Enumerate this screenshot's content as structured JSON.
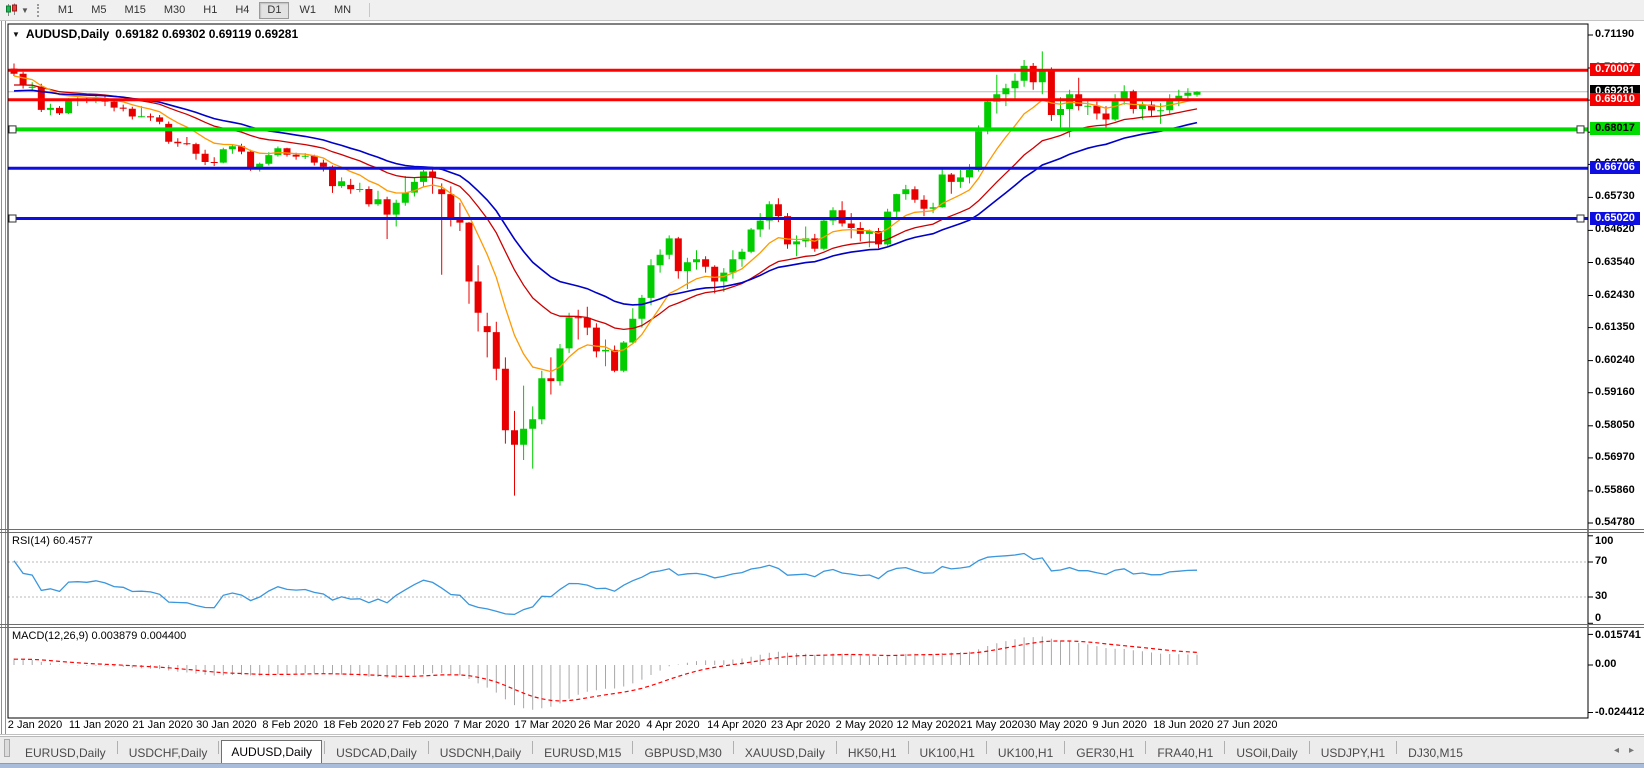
{
  "toolbar": {
    "timeframes": [
      "M1",
      "M5",
      "M15",
      "M30",
      "H1",
      "H4",
      "D1",
      "W1",
      "MN"
    ],
    "active_timeframe": "D1"
  },
  "tabs": {
    "items": [
      {
        "label": "EURUSD,Daily",
        "active": false
      },
      {
        "label": "USDCHF,Daily",
        "active": false
      },
      {
        "label": "AUDUSD,Daily",
        "active": true
      },
      {
        "label": "USDCAD,Daily",
        "active": false
      },
      {
        "label": "USDCNH,Daily",
        "active": false
      },
      {
        "label": "EURUSD,M15",
        "active": false
      },
      {
        "label": "GBPUSD,M30",
        "active": false
      },
      {
        "label": "XAUUSD,Daily",
        "active": false
      },
      {
        "label": "HK50,H1",
        "active": false
      },
      {
        "label": "UK100,H1",
        "active": false
      },
      {
        "label": "UK100,H1",
        "active": false
      },
      {
        "label": "GER30,H1",
        "active": false
      },
      {
        "label": "FRA40,H1",
        "active": false
      },
      {
        "label": "USOil,Daily",
        "active": false
      },
      {
        "label": "USDJPY,H1",
        "active": false
      },
      {
        "label": "DJ30,M15",
        "active": false
      }
    ],
    "scroll_left": "◂",
    "scroll_right": "▸"
  },
  "chart_data": {
    "type": "candlestick",
    "symbol": "AUDUSD",
    "timeframe": "Daily",
    "title": "AUDUSD,Daily",
    "ohlc_text": "0.69182 0.69302 0.69119 0.69281",
    "current": {
      "open": 0.69182,
      "high": 0.69302,
      "low": 0.69119,
      "close": 0.69281
    },
    "title_dropdown_icon": "▼",
    "colors": {
      "bull": "#00CC00",
      "bear": "#E80000",
      "ma_fast": "#FF9900",
      "ma_mid": "#CC0000",
      "ma_slow": "#0000C8",
      "rsi_line": "#3A96DD",
      "rsi_grid": "#B8B8B8",
      "macd_hist": "#A8A8A8",
      "macd_signal": "#FF0000",
      "current_price_line": "#BBBBBB",
      "frame": "#000000",
      "splitter": "#6E6E6E",
      "window_border": "#909090"
    },
    "price_axis": {
      "ticks": [
        "0.71190",
        "0.70080",
        "0.69000",
        "0.67920",
        "0.66840",
        "0.65730",
        "0.64620",
        "0.63540",
        "0.62430",
        "0.61350",
        "0.60240",
        "0.59160",
        "0.58050",
        "0.56970",
        "0.55860",
        "0.54780"
      ]
    },
    "current_price": {
      "label": "0.69281",
      "price": 0.69281,
      "badge_bg": "#000000",
      "badge_fg": "#FFFFFF",
      "line_color": "#BBBBBB"
    },
    "levels": [
      {
        "label": "0.70007",
        "price": 0.70007,
        "line_color": "#FF0000",
        "badge_bg": "#F40000",
        "badge_fg": "#FFFFFF",
        "width": 3,
        "handles": false
      },
      {
        "label": "0.69010",
        "price": 0.6901,
        "line_color": "#FF0000",
        "badge_bg": "#F40000",
        "badge_fg": "#FFFFFF",
        "width": 3,
        "handles": false
      },
      {
        "label": "0.68017",
        "price": 0.68017,
        "line_color": "#00DC00",
        "badge_bg": "#00DC00",
        "badge_fg": "#000000",
        "width": 4,
        "handles": true
      },
      {
        "label": "0.66706",
        "price": 0.66706,
        "line_color": "#0E0EE0",
        "badge_bg": "#0E0EE0",
        "badge_fg": "#FFFFFF",
        "width": 3,
        "handles": false
      },
      {
        "label": "0.65020",
        "price": 0.6502,
        "line_color": "#0E0EE0",
        "badge_bg": "#0E0EE0",
        "badge_fg": "#FFFFFF",
        "width": 3,
        "handles": true
      }
    ],
    "date_axis": [
      "2 Jan 2020",
      "11 Jan 2020",
      "21 Jan 2020",
      "30 Jan 2020",
      "8 Feb 2020",
      "18 Feb 2020",
      "27 Feb 2020",
      "7 Mar 2020",
      "17 Mar 2020",
      "26 Mar 2020",
      "4 Apr 2020",
      "14 Apr 2020",
      "23 Apr 2020",
      "2 May 2020",
      "12 May 2020",
      "21 May 2020",
      "30 May 2020",
      "9 Jun 2020",
      "18 Jun 2020",
      "27 Jun 2020"
    ],
    "moving_averages": [
      {
        "name": "ma-fast",
        "period": 9,
        "color": "#FF9900"
      },
      {
        "name": "ma-mid",
        "period": 20,
        "color": "#CC0000"
      },
      {
        "name": "ma-slow",
        "period": 30,
        "color": "#0000C8"
      }
    ],
    "rsi": {
      "label": "RSI(14) 60.4577",
      "period": 14,
      "grid_levels": [
        70,
        30
      ],
      "axis_labels": [
        {
          "label": "100",
          "value": 100
        },
        {
          "label": "70",
          "value": 70
        },
        {
          "label": "30",
          "value": 30
        },
        {
          "label": "0",
          "value": 0
        }
      ]
    },
    "macd": {
      "label": "MACD(12,26,9) 0.003879 0.004400",
      "fast": 12,
      "slow": 26,
      "signal": 9,
      "axis_labels": [
        {
          "label": "0.015741",
          "value": 0.015741
        },
        {
          "label": "0.00",
          "value": 0
        },
        {
          "label": "-0.024412",
          "value": -0.024412
        }
      ]
    },
    "prehistory_closes": [
      0.684,
      0.685,
      0.6845,
      0.686,
      0.687,
      0.6865,
      0.688,
      0.689,
      0.6885,
      0.69,
      0.691,
      0.6905,
      0.6915,
      0.6925,
      0.692,
      0.693,
      0.694,
      0.6935,
      0.6945,
      0.6955,
      0.695,
      0.696,
      0.697,
      0.698,
      0.699,
      0.7005,
      0.702
    ],
    "candles": [
      [
        0.7006,
        0.7023,
        0.6981,
        0.6989
      ],
      [
        0.6989,
        0.6995,
        0.6939,
        0.6951
      ],
      [
        0.6941,
        0.696,
        0.693,
        0.6945
      ],
      [
        0.6945,
        0.6955,
        0.686,
        0.6867
      ],
      [
        0.6867,
        0.6888,
        0.6849,
        0.6874
      ],
      [
        0.6874,
        0.688,
        0.685,
        0.6856
      ],
      [
        0.6856,
        0.6906,
        0.6853,
        0.69
      ],
      [
        0.69,
        0.691,
        0.688,
        0.6902
      ],
      [
        0.6902,
        0.691,
        0.689,
        0.6899
      ],
      [
        0.6899,
        0.692,
        0.689,
        0.6906
      ],
      [
        0.6906,
        0.6913,
        0.688,
        0.6895
      ],
      [
        0.6895,
        0.69,
        0.6862,
        0.6875
      ],
      [
        0.6875,
        0.6885,
        0.6862,
        0.6871
      ],
      [
        0.6871,
        0.6878,
        0.6835,
        0.6845
      ],
      [
        0.6845,
        0.688,
        0.6842,
        0.6846
      ],
      [
        0.6846,
        0.6855,
        0.683,
        0.6842
      ],
      [
        0.6842,
        0.685,
        0.6819,
        0.6827
      ],
      [
        0.682,
        0.6828,
        0.6753,
        0.676
      ],
      [
        0.676,
        0.6772,
        0.6743,
        0.6755
      ],
      [
        0.6755,
        0.6776,
        0.6748,
        0.6752
      ],
      [
        0.6752,
        0.6757,
        0.67,
        0.672
      ],
      [
        0.672,
        0.6733,
        0.6682,
        0.6692
      ],
      [
        0.6692,
        0.6708,
        0.6678,
        0.669
      ],
      [
        0.669,
        0.674,
        0.6688,
        0.6735
      ],
      [
        0.6735,
        0.675,
        0.672,
        0.6745
      ],
      [
        0.6745,
        0.6753,
        0.6718,
        0.6727
      ],
      [
        0.6727,
        0.6733,
        0.6662,
        0.667
      ],
      [
        0.667,
        0.669,
        0.666,
        0.6686
      ],
      [
        0.6686,
        0.6725,
        0.668,
        0.6715
      ],
      [
        0.6715,
        0.6744,
        0.671,
        0.6738
      ],
      [
        0.6738,
        0.674,
        0.671,
        0.6716
      ],
      [
        0.6716,
        0.6723,
        0.67,
        0.671
      ],
      [
        0.671,
        0.6722,
        0.6702,
        0.6713
      ],
      [
        0.6713,
        0.6716,
        0.668,
        0.669
      ],
      [
        0.669,
        0.67,
        0.666,
        0.6676
      ],
      [
        0.6676,
        0.668,
        0.6588,
        0.6611
      ],
      [
        0.6611,
        0.664,
        0.6605,
        0.6627
      ],
      [
        0.6615,
        0.6635,
        0.6585,
        0.66
      ],
      [
        0.66,
        0.6622,
        0.659,
        0.6601
      ],
      [
        0.6601,
        0.661,
        0.6542,
        0.655
      ],
      [
        0.655,
        0.6595,
        0.6545,
        0.6567
      ],
      [
        0.6567,
        0.6575,
        0.6433,
        0.6515
      ],
      [
        0.6515,
        0.6565,
        0.6475,
        0.6555
      ],
      [
        0.6555,
        0.6645,
        0.6545,
        0.6589
      ],
      [
        0.6589,
        0.664,
        0.6576,
        0.6625
      ],
      [
        0.6625,
        0.6665,
        0.661,
        0.666
      ],
      [
        0.666,
        0.667,
        0.6585,
        0.664
      ],
      [
        0.66,
        0.662,
        0.6313,
        0.6584
      ],
      [
        0.6584,
        0.661,
        0.6475,
        0.65
      ],
      [
        0.65,
        0.6555,
        0.646,
        0.6488
      ],
      [
        0.6488,
        0.649,
        0.6215,
        0.629
      ],
      [
        0.629,
        0.6345,
        0.6122,
        0.6185
      ],
      [
        0.614,
        0.6185,
        0.6035,
        0.612
      ],
      [
        0.612,
        0.6155,
        0.5958,
        0.5997
      ],
      [
        0.5997,
        0.6035,
        0.5745,
        0.579
      ],
      [
        0.579,
        0.5855,
        0.557,
        0.5741
      ],
      [
        0.5741,
        0.594,
        0.569,
        0.5795
      ],
      [
        0.5795,
        0.587,
        0.5661,
        0.5827
      ],
      [
        0.5827,
        0.599,
        0.581,
        0.5965
      ],
      [
        0.5965,
        0.6035,
        0.591,
        0.5955
      ],
      [
        0.5955,
        0.608,
        0.594,
        0.6065
      ],
      [
        0.6065,
        0.6185,
        0.605,
        0.617
      ],
      [
        0.617,
        0.6195,
        0.6095,
        0.6168
      ],
      [
        0.6168,
        0.6205,
        0.611,
        0.6135
      ],
      [
        0.6135,
        0.615,
        0.6035,
        0.6055
      ],
      [
        0.6055,
        0.6095,
        0.6005,
        0.606
      ],
      [
        0.606,
        0.6075,
        0.5985,
        0.599
      ],
      [
        0.599,
        0.609,
        0.5985,
        0.6085
      ],
      [
        0.6085,
        0.62,
        0.608,
        0.6165
      ],
      [
        0.6165,
        0.6245,
        0.6135,
        0.6235
      ],
      [
        0.6235,
        0.6365,
        0.621,
        0.6345
      ],
      [
        0.6345,
        0.6398,
        0.632,
        0.638
      ],
      [
        0.638,
        0.6445,
        0.6365,
        0.6435
      ],
      [
        0.6435,
        0.644,
        0.63,
        0.6325
      ],
      [
        0.6325,
        0.637,
        0.6265,
        0.6355
      ],
      [
        0.6355,
        0.6395,
        0.633,
        0.6365
      ],
      [
        0.6365,
        0.6375,
        0.632,
        0.634
      ],
      [
        0.634,
        0.6345,
        0.625,
        0.629
      ],
      [
        0.629,
        0.6335,
        0.6255,
        0.632
      ],
      [
        0.632,
        0.6395,
        0.63,
        0.6365
      ],
      [
        0.6365,
        0.64,
        0.634,
        0.639
      ],
      [
        0.639,
        0.647,
        0.6385,
        0.6465
      ],
      [
        0.6465,
        0.652,
        0.644,
        0.6495
      ],
      [
        0.6495,
        0.656,
        0.6465,
        0.655
      ],
      [
        0.655,
        0.657,
        0.649,
        0.651
      ],
      [
        0.651,
        0.652,
        0.64,
        0.6415
      ],
      [
        0.6415,
        0.6445,
        0.6375,
        0.6425
      ],
      [
        0.6425,
        0.6475,
        0.6405,
        0.6435
      ],
      [
        0.6435,
        0.645,
        0.639,
        0.64
      ],
      [
        0.64,
        0.6505,
        0.6395,
        0.6495
      ],
      [
        0.6495,
        0.654,
        0.648,
        0.653
      ],
      [
        0.653,
        0.656,
        0.6475,
        0.6485
      ],
      [
        0.6485,
        0.652,
        0.6435,
        0.647
      ],
      [
        0.647,
        0.649,
        0.6425,
        0.645
      ],
      [
        0.645,
        0.6465,
        0.6405,
        0.646
      ],
      [
        0.646,
        0.647,
        0.6402,
        0.6415
      ],
      [
        0.6415,
        0.6535,
        0.641,
        0.6525
      ],
      [
        0.6525,
        0.6585,
        0.6505,
        0.6584
      ],
      [
        0.6584,
        0.6615,
        0.6565,
        0.66
      ],
      [
        0.66,
        0.661,
        0.6555,
        0.6565
      ],
      [
        0.6565,
        0.658,
        0.651,
        0.6535
      ],
      [
        0.6535,
        0.6555,
        0.652,
        0.654
      ],
      [
        0.654,
        0.6675,
        0.6538,
        0.665
      ],
      [
        0.665,
        0.6655,
        0.6585,
        0.6625
      ],
      [
        0.6625,
        0.6665,
        0.6605,
        0.664
      ],
      [
        0.664,
        0.6685,
        0.662,
        0.6665
      ],
      [
        0.6665,
        0.6815,
        0.666,
        0.6795
      ],
      [
        0.6795,
        0.69,
        0.6785,
        0.6895
      ],
      [
        0.6895,
        0.6985,
        0.6855,
        0.692
      ],
      [
        0.692,
        0.6955,
        0.688,
        0.694
      ],
      [
        0.694,
        0.699,
        0.6905,
        0.6965
      ],
      [
        0.6965,
        0.7035,
        0.6945,
        0.7015
      ],
      [
        0.7015,
        0.7025,
        0.6935,
        0.696
      ],
      [
        0.696,
        0.7064,
        0.692,
        0.7
      ],
      [
        0.7,
        0.701,
        0.683,
        0.685
      ],
      [
        0.685,
        0.691,
        0.68,
        0.687
      ],
      [
        0.687,
        0.6935,
        0.6775,
        0.692
      ],
      [
        0.692,
        0.6975,
        0.6865,
        0.688
      ],
      [
        0.688,
        0.6905,
        0.685,
        0.6881
      ],
      [
        0.6881,
        0.6895,
        0.6835,
        0.6855
      ],
      [
        0.6855,
        0.688,
        0.6805,
        0.6835
      ],
      [
        0.6835,
        0.692,
        0.683,
        0.6905
      ],
      [
        0.6905,
        0.695,
        0.6885,
        0.693
      ],
      [
        0.693,
        0.6935,
        0.6855,
        0.687
      ],
      [
        0.687,
        0.6895,
        0.6835,
        0.6885
      ],
      [
        0.6885,
        0.69,
        0.6845,
        0.6865
      ],
      [
        0.6865,
        0.689,
        0.682,
        0.6866
      ],
      [
        0.6866,
        0.692,
        0.6855,
        0.6905
      ],
      [
        0.6905,
        0.6935,
        0.688,
        0.6915
      ],
      [
        0.6915,
        0.694,
        0.69,
        0.6925
      ],
      [
        0.69182,
        0.69302,
        0.69119,
        0.69281
      ]
    ]
  }
}
